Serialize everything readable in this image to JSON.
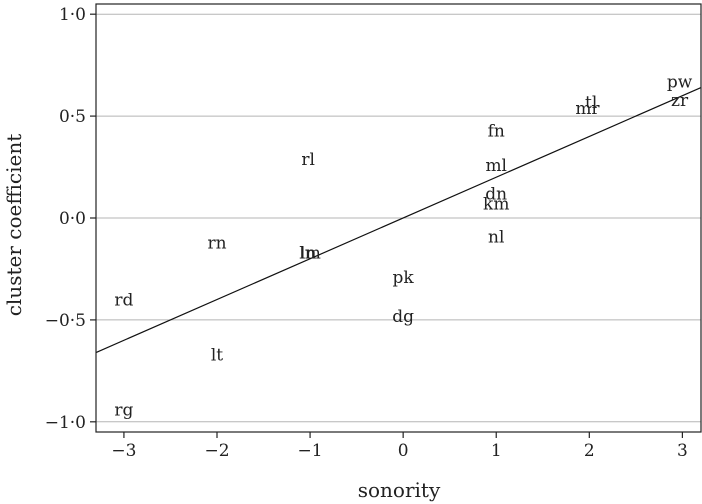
{
  "chart_data": {
    "type": "scatter",
    "xlabel": "sonority",
    "ylabel": "cluster coefficient",
    "xlim": [
      -3.3,
      3.2
    ],
    "ylim": [
      -1.05,
      1.05
    ],
    "xticks": [
      -3,
      -2,
      -1,
      0,
      1,
      2,
      3
    ],
    "yticks": [
      -1.0,
      -0.5,
      0.0,
      0.5,
      1.0
    ],
    "xtick_labels": [
      "−3",
      "−2",
      "−1",
      "0",
      "1",
      "2",
      "3"
    ],
    "ytick_labels": [
      "−1·0",
      "−0·5",
      "0·0",
      "0·5",
      "1·0"
    ],
    "grid": "horizontal",
    "points": [
      {
        "label": "pw",
        "x": 2.97,
        "y": 0.67
      },
      {
        "label": "zr",
        "x": 2.97,
        "y": 0.58
      },
      {
        "label": "tl",
        "x": 2.02,
        "y": 0.57
      },
      {
        "label": "mr",
        "x": 1.98,
        "y": 0.54
      },
      {
        "label": "fn",
        "x": 1.0,
        "y": 0.43
      },
      {
        "label": "ml",
        "x": 1.0,
        "y": 0.26
      },
      {
        "label": "dn",
        "x": 1.0,
        "y": 0.12
      },
      {
        "label": "km",
        "x": 1.0,
        "y": 0.07
      },
      {
        "label": "nl",
        "x": 1.0,
        "y": -0.09
      },
      {
        "label": "rl",
        "x": -1.02,
        "y": 0.29
      },
      {
        "label": "rn",
        "x": -2.0,
        "y": -0.12
      },
      {
        "label": "lm",
        "x": -1.0,
        "y": -0.17
      },
      {
        "label": "ln",
        "x": -1.02,
        "y": -0.17
      },
      {
        "label": "pk",
        "x": 0.0,
        "y": -0.29
      },
      {
        "label": "dg",
        "x": 0.0,
        "y": -0.48
      },
      {
        "label": "rd",
        "x": -3.0,
        "y": -0.4
      },
      {
        "label": "lt",
        "x": -2.0,
        "y": -0.67
      },
      {
        "label": "rg",
        "x": -3.0,
        "y": -0.94
      }
    ],
    "fit_line": {
      "slope": 0.2,
      "intercept": 0.0
    }
  }
}
